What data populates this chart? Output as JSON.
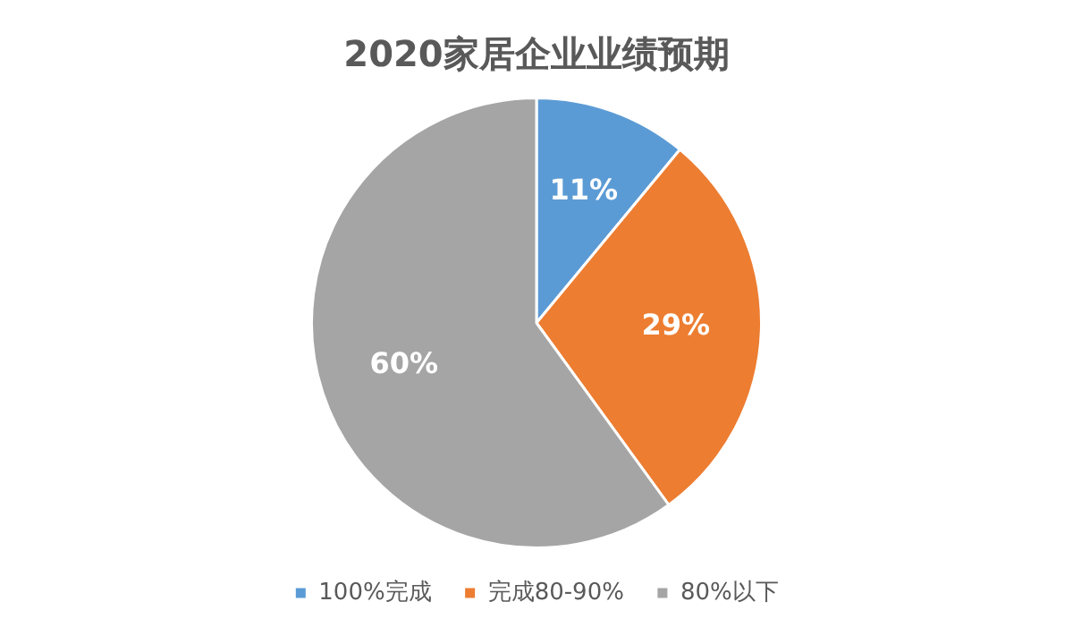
{
  "chart_data": {
    "type": "pie",
    "title": "2020家居企业业绩预期",
    "categories": [
      "100%完成",
      "完成80-90%",
      "80%以下"
    ],
    "values": [
      11,
      29,
      60
    ],
    "colors": [
      "#5b9bd5",
      "#ed7d31",
      "#a5a5a5"
    ],
    "value_labels": [
      "11%",
      "29%",
      "60%"
    ],
    "legend": "bottom"
  }
}
